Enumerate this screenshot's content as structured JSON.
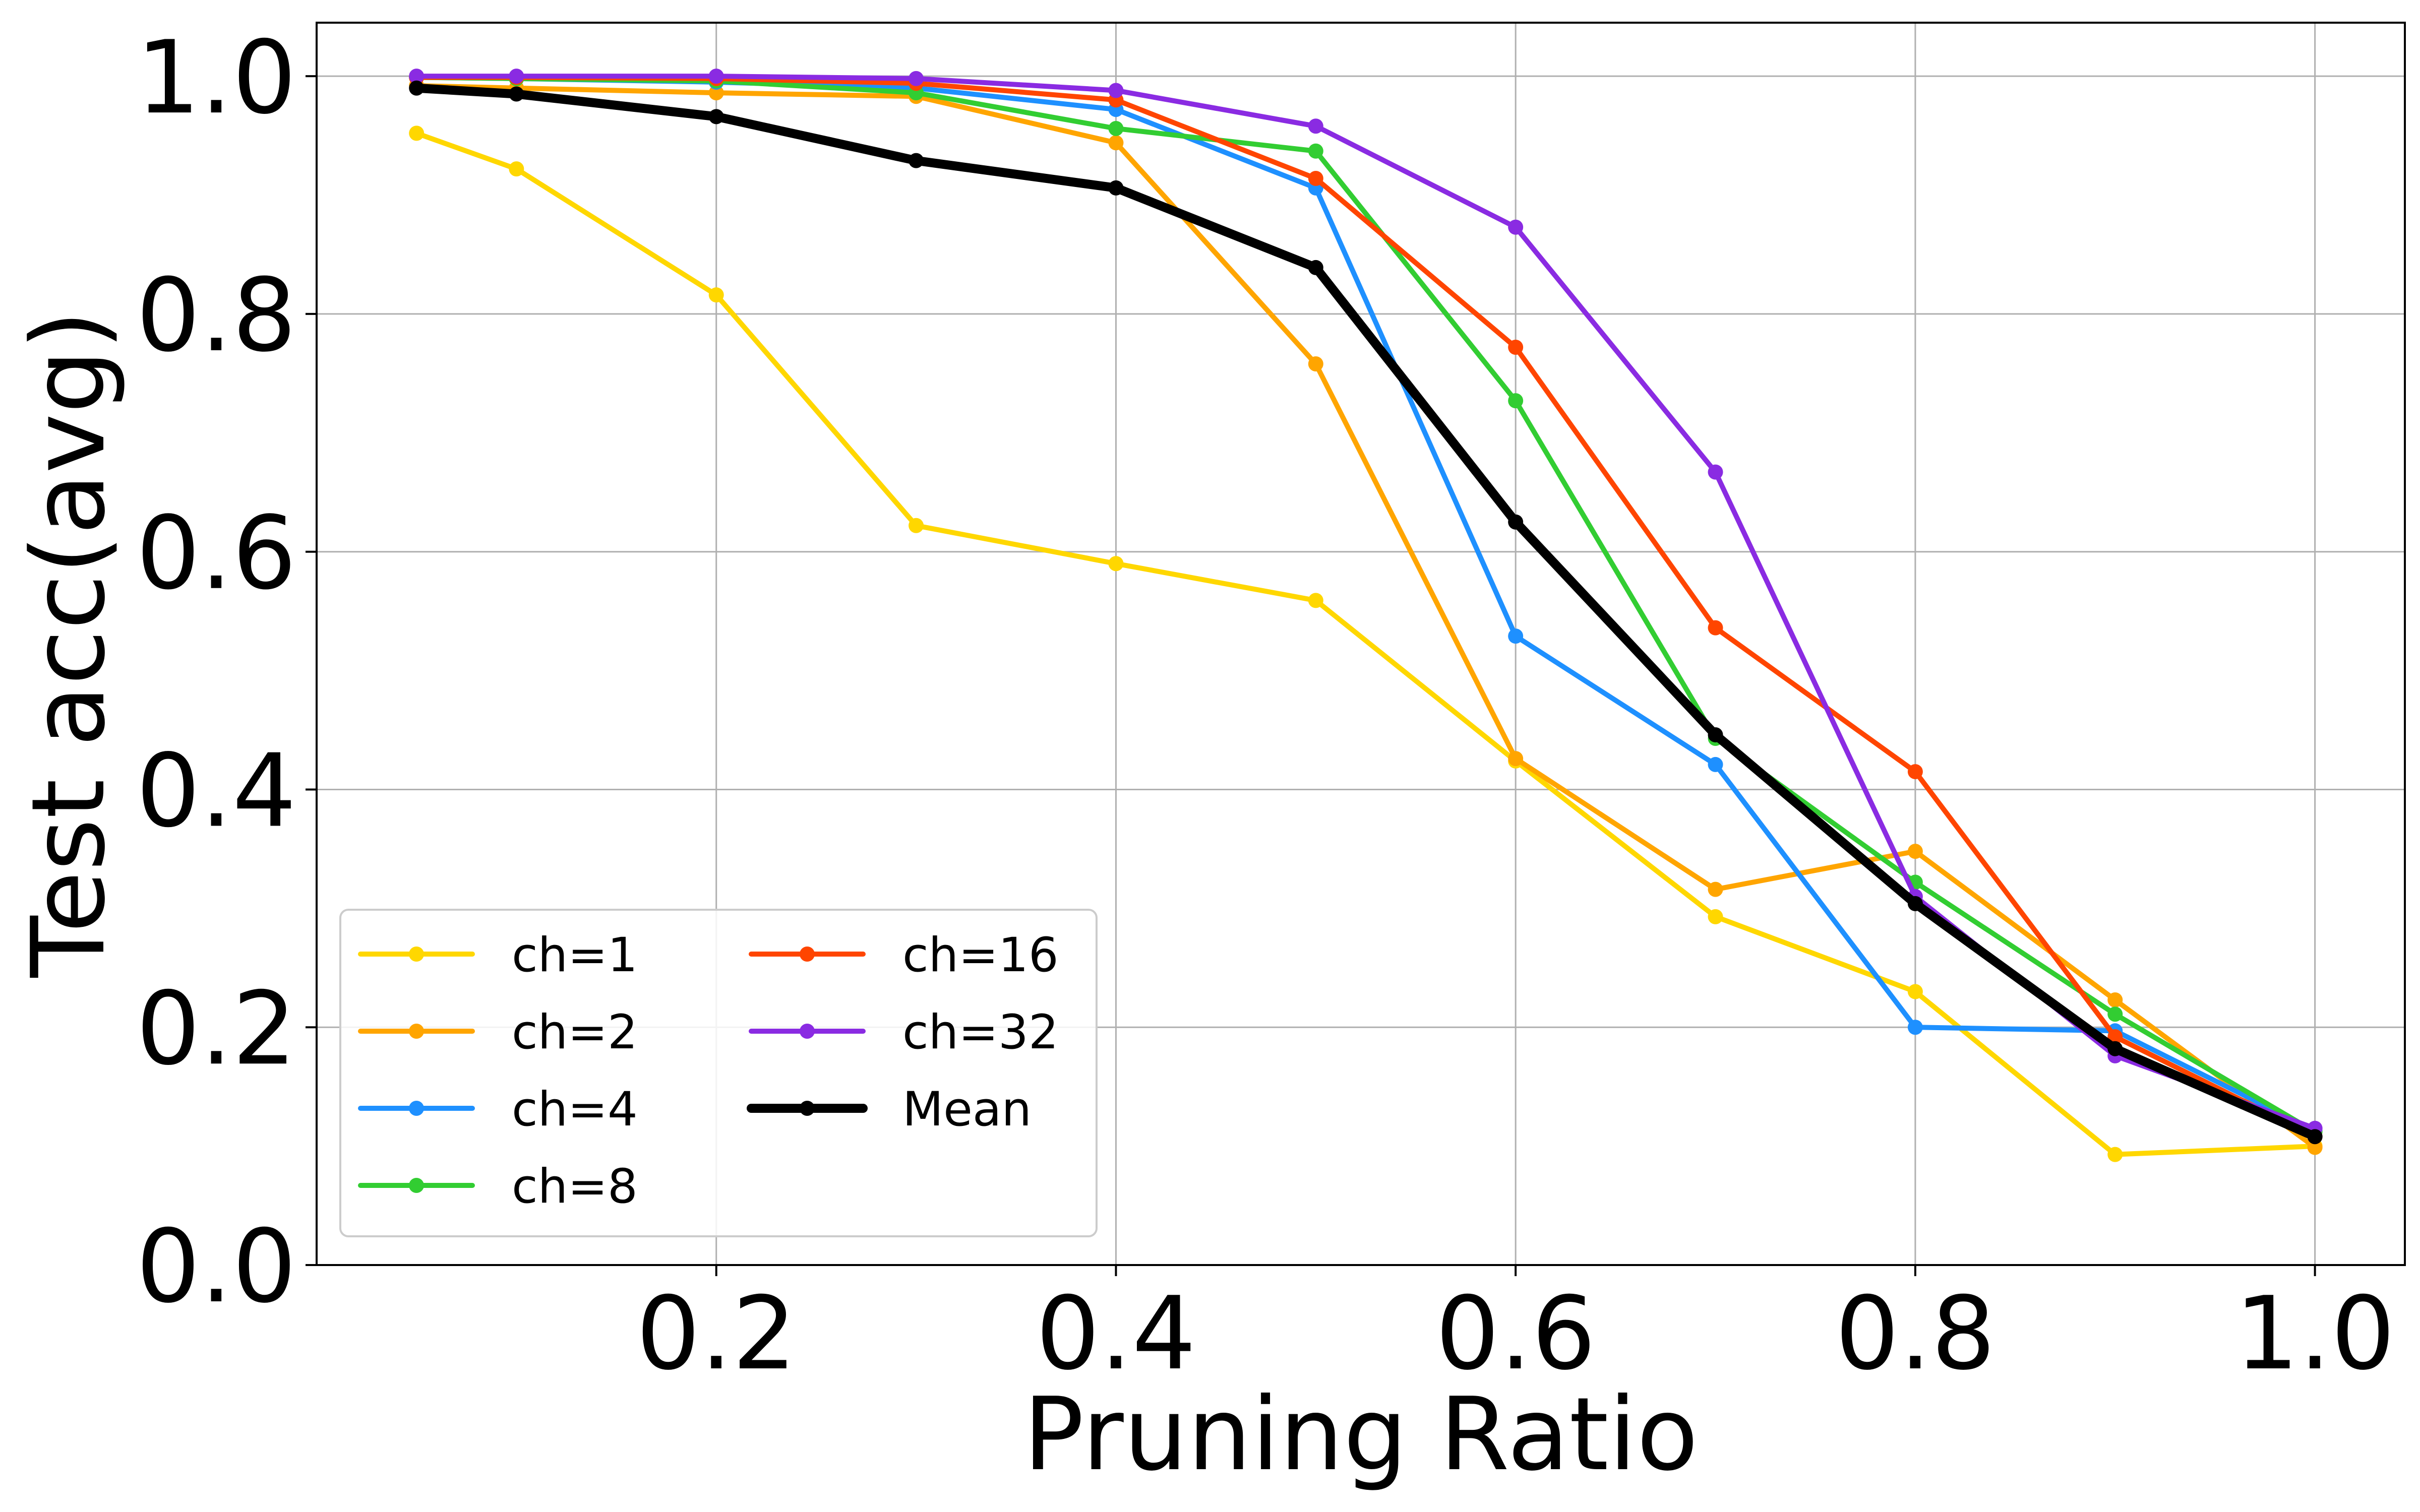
{
  "chart_data": {
    "type": "line",
    "title": "",
    "xlabel": "Pruning Ratio",
    "ylabel": "Test acc(avg)",
    "xlim": [
      0.0,
      1.045
    ],
    "ylim": [
      0.0,
      1.045
    ],
    "xticks": [
      "0.2",
      "0.4",
      "0.6",
      "0.8",
      "1.0"
    ],
    "xtick_values": [
      0.2,
      0.4,
      0.6,
      0.8,
      1.0
    ],
    "yticks": [
      "0.0",
      "0.2",
      "0.4",
      "0.6",
      "0.8",
      "1.0"
    ],
    "ytick_values": [
      0.0,
      0.2,
      0.4,
      0.6,
      0.8,
      1.0
    ],
    "grid": true,
    "legend_position": "lower-left",
    "legend_columns": 2,
    "x": [
      0.05,
      0.1,
      0.2,
      0.3,
      0.4,
      0.5,
      0.6,
      0.7,
      0.8,
      0.9,
      1.0
    ],
    "series": [
      {
        "name": "ch=1",
        "color": "#FFD700",
        "values": [
          0.952,
          0.922,
          0.816,
          0.622,
          0.59,
          0.559,
          0.424,
          0.293,
          0.23,
          0.093,
          0.1
        ]
      },
      {
        "name": "ch=2",
        "color": "#FFA500",
        "values": [
          0.992,
          0.99,
          0.986,
          0.983,
          0.944,
          0.758,
          0.426,
          0.316,
          0.348,
          0.223,
          0.099
        ]
      },
      {
        "name": "ch=4",
        "color": "#1E90FF",
        "values": [
          0.999,
          0.998,
          0.995,
          0.99,
          0.972,
          0.906,
          0.529,
          0.421,
          0.2,
          0.197,
          0.113
        ]
      },
      {
        "name": "ch=8",
        "color": "#32CD32",
        "values": [
          0.999,
          0.998,
          0.996,
          0.986,
          0.956,
          0.937,
          0.727,
          0.443,
          0.322,
          0.211,
          0.112
        ]
      },
      {
        "name": "ch=16",
        "color": "#FF4500",
        "values": [
          0.999,
          0.999,
          0.998,
          0.994,
          0.98,
          0.914,
          0.772,
          0.536,
          0.415,
          0.192,
          0.108
        ]
      },
      {
        "name": "ch=32",
        "color": "#8A2BE2",
        "values": [
          1.0,
          1.0,
          1.0,
          0.998,
          0.988,
          0.958,
          0.873,
          0.667,
          0.31,
          0.176,
          0.115
        ]
      },
      {
        "name": "Mean",
        "color": "#000000",
        "bold": true,
        "values": [
          0.99,
          0.985,
          0.966,
          0.929,
          0.906,
          0.839,
          0.625,
          0.446,
          0.304,
          0.182,
          0.108
        ]
      }
    ]
  }
}
